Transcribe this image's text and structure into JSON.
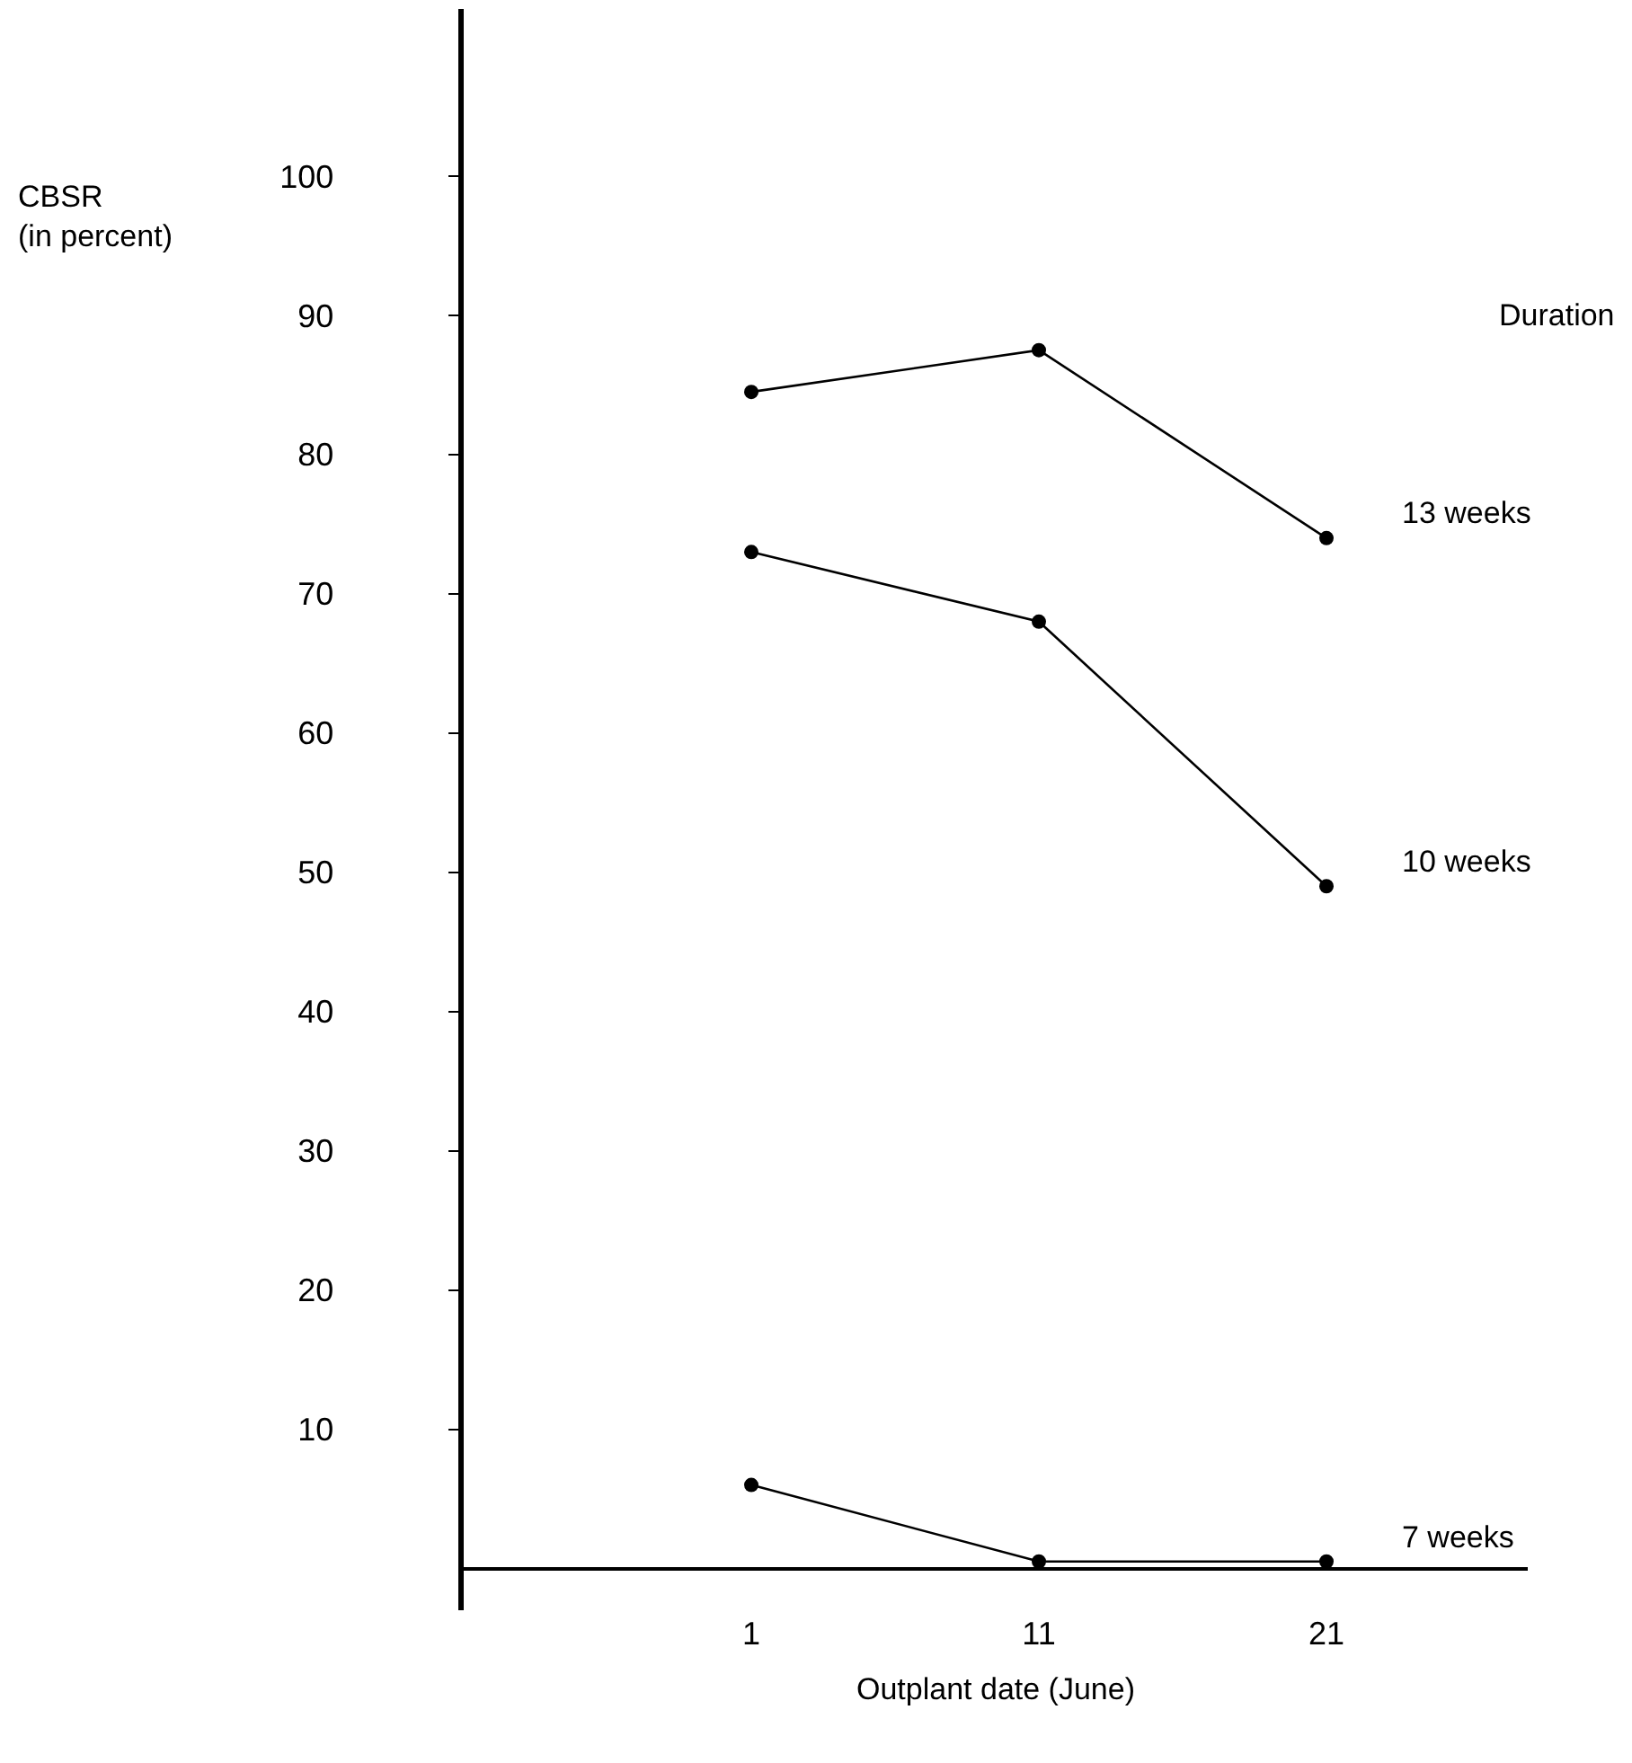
{
  "chart_data": {
    "type": "line",
    "xlabel": "Outplant date (June)",
    "ylabel": "CBSR\n(in percent)",
    "legend_title": "Duration",
    "x": [
      1,
      11,
      21
    ],
    "series": [
      {
        "name": "13 weeks",
        "color": "#000000",
        "values": [
          84.5,
          87.5,
          74
        ]
      },
      {
        "name": "10 weeks",
        "color": "#000000",
        "values": [
          73,
          68,
          49
        ]
      },
      {
        "name": "7 weeks",
        "color": "#000000",
        "values": [
          6,
          0.5,
          0.5
        ]
      }
    ],
    "xlim": [
      -9,
      28
    ],
    "xticks": [
      1,
      11,
      21
    ],
    "ylim": [
      -3,
      112
    ],
    "yticks": [
      10,
      20,
      30,
      40,
      50,
      60,
      70,
      80,
      90,
      100
    ],
    "legend": false,
    "marker": "circle",
    "line_style": "solid"
  }
}
